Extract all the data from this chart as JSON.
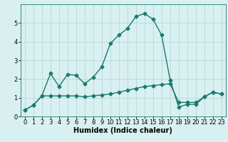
{
  "line1_x": [
    0,
    1,
    2,
    3,
    4,
    5,
    6,
    7,
    8,
    9,
    10,
    11,
    12,
    13,
    14,
    15,
    16,
    17,
    18,
    19,
    20,
    21,
    22,
    23
  ],
  "line1_y": [
    0.35,
    0.6,
    1.1,
    2.3,
    1.6,
    2.25,
    2.2,
    1.75,
    2.1,
    2.65,
    3.9,
    4.35,
    4.7,
    5.35,
    5.5,
    5.2,
    4.35,
    1.95,
    0.5,
    0.65,
    0.65,
    1.05,
    1.3,
    1.2
  ],
  "line2_x": [
    0,
    1,
    2,
    3,
    4,
    5,
    6,
    7,
    8,
    9,
    10,
    11,
    12,
    13,
    14,
    15,
    16,
    17,
    18,
    19,
    20,
    21,
    22,
    23
  ],
  "line2_y": [
    0.35,
    0.6,
    1.1,
    1.1,
    1.1,
    1.1,
    1.1,
    1.05,
    1.1,
    1.15,
    1.2,
    1.3,
    1.4,
    1.5,
    1.6,
    1.65,
    1.7,
    1.75,
    0.75,
    0.75,
    0.75,
    1.05,
    1.3,
    1.2
  ],
  "line_color": "#1a7a6e",
  "bg_color": "#d8f0f0",
  "grid_color": "#b8d8d8",
  "xlabel": "Humidex (Indice chaleur)",
  "xlim": [
    -0.5,
    23.5
  ],
  "ylim": [
    0,
    6
  ],
  "yticks": [
    0,
    1,
    2,
    3,
    4,
    5
  ],
  "xticks": [
    0,
    1,
    2,
    3,
    4,
    5,
    6,
    7,
    8,
    9,
    10,
    11,
    12,
    13,
    14,
    15,
    16,
    17,
    18,
    19,
    20,
    21,
    22,
    23
  ],
  "marker": "D",
  "markersize": 2.5,
  "linewidth": 1.0,
  "xlabel_fontsize": 7,
  "tick_fontsize": 6
}
